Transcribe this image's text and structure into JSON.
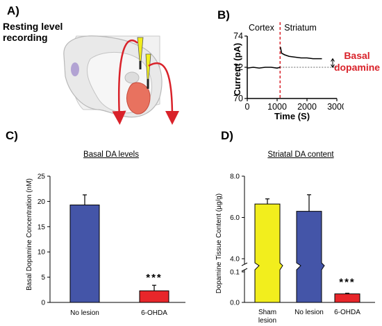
{
  "panels": {
    "a": {
      "label": "A)",
      "note_line1": "Resting level",
      "note_line2": "recording"
    },
    "b": {
      "label": "B)"
    },
    "c": {
      "label": "C)"
    },
    "d": {
      "label": "D)"
    }
  },
  "annotations": {
    "basal_line1": "Basal",
    "basal_line2": "dopamine",
    "stars_c": "***",
    "stars_d": "***"
  },
  "colors": {
    "blue": "#4455a8",
    "yellow": "#f2ee1d",
    "red": "#e8262a",
    "dashed_red": "#d9222a"
  },
  "chart_data": [
    {
      "type": "line",
      "title": "",
      "xlabel": "Time (S)",
      "ylabel": "Current (pA)",
      "xlim": [
        0,
        3000
      ],
      "ylim": [
        70,
        74
      ],
      "xticks": [
        "0",
        "1000",
        "2000",
        "3000"
      ],
      "yticks": [
        "70",
        "72",
        "74"
      ],
      "region_labels": [
        "Cortex",
        "Striatum"
      ],
      "divider_x": 1100,
      "series": [
        {
          "x": [
            0,
            200,
            400,
            600,
            800,
            1000,
            1100
          ],
          "y": [
            71.95,
            72.0,
            71.95,
            72.0,
            72.0,
            71.95,
            72.0
          ]
        },
        {
          "x": [
            1110,
            1150,
            1250,
            1400,
            1600,
            1800,
            2000,
            2200,
            2400,
            2500
          ],
          "y": [
            73.3,
            72.9,
            72.8,
            72.7,
            72.65,
            72.6,
            72.6,
            72.55,
            72.55,
            72.55
          ]
        }
      ],
      "reference_line_y": 72
    },
    {
      "type": "bar",
      "title": "Basal DA levels",
      "xlabel": "",
      "ylabel": "Basal Dopamine Concentration (nM)",
      "ylim": [
        0,
        25
      ],
      "yticks": [
        "0",
        "5",
        "10",
        "15",
        "20",
        "25"
      ],
      "categories": [
        "No lesion",
        "6-OHDA"
      ],
      "values": [
        19.3,
        2.3
      ],
      "errors": [
        2.0,
        1.1
      ],
      "colors": [
        "#4455a8",
        "#e8262a"
      ]
    },
    {
      "type": "bar",
      "title": "Striatal DA content",
      "xlabel": "",
      "ylabel": "Dopamine Tissue Content (µg/g)",
      "broken_axis": true,
      "upper_ylim": [
        4.0,
        8.0
      ],
      "lower_ylim": [
        0.0,
        0.1
      ],
      "yticks": [
        "0.0",
        "0.1",
        "4.0",
        "6.0",
        "8.0"
      ],
      "categories": [
        [
          "Sham",
          "lesion"
        ],
        [
          "No lesion"
        ],
        [
          "6-OHDA"
        ]
      ],
      "values": [
        6.65,
        6.3,
        0.028
      ],
      "errors": [
        0.25,
        0.8,
        0.002
      ],
      "colors": [
        "#f2ee1d",
        "#4455a8",
        "#e8262a"
      ]
    }
  ]
}
